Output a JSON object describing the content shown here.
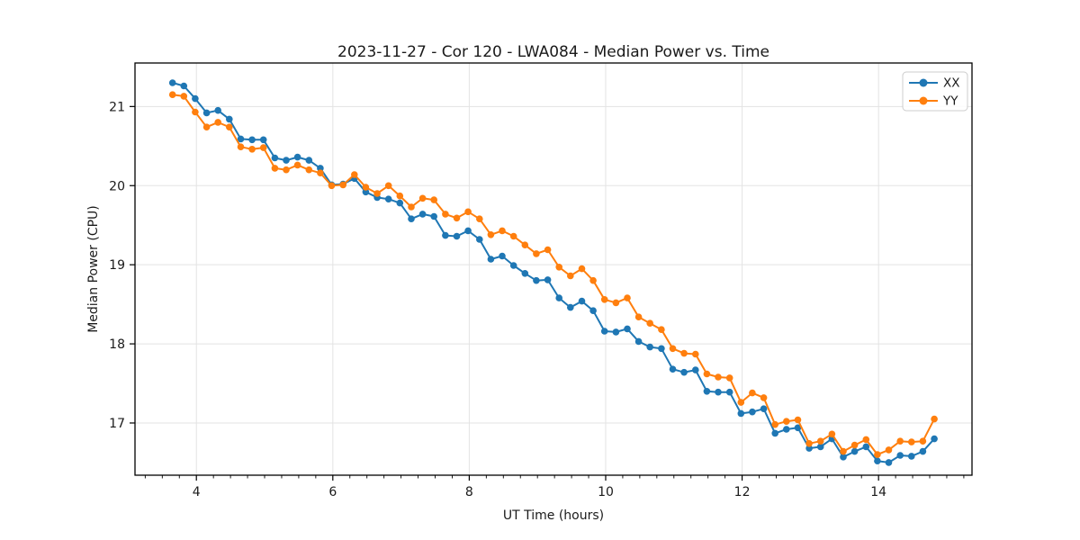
{
  "chart_data": {
    "type": "line",
    "title": "2023-11-27 - Cor 120 - LWA084 - Median Power vs. Time",
    "xlabel": "UT Time (hours)",
    "ylabel": "Median Power (CPU)",
    "xlim": [
      3.1,
      15.37
    ],
    "ylim": [
      16.34,
      21.55
    ],
    "xticks": [
      4,
      6,
      8,
      10,
      12,
      14
    ],
    "yticks": [
      17,
      18,
      19,
      20,
      21
    ],
    "x_minor_step": 0.25,
    "grid": true,
    "grid_color": "#e3e3e3",
    "legend_position": "upper right",
    "x": [
      3.65,
      3.817,
      3.983,
      4.15,
      4.317,
      4.483,
      4.65,
      4.817,
      4.983,
      5.15,
      5.317,
      5.483,
      5.65,
      5.817,
      5.983,
      6.15,
      6.317,
      6.483,
      6.65,
      6.817,
      6.983,
      7.15,
      7.317,
      7.483,
      7.65,
      7.817,
      7.983,
      8.15,
      8.317,
      8.483,
      8.65,
      8.817,
      8.983,
      9.15,
      9.317,
      9.483,
      9.65,
      9.817,
      9.983,
      10.15,
      10.317,
      10.483,
      10.65,
      10.817,
      10.983,
      11.15,
      11.317,
      11.483,
      11.65,
      11.817,
      11.983,
      12.15,
      12.317,
      12.483,
      12.65,
      12.817,
      12.983,
      13.15,
      13.317,
      13.483,
      13.65,
      13.817,
      13.983,
      14.15,
      14.317,
      14.483,
      14.65,
      14.817
    ],
    "series": [
      {
        "name": "XX",
        "color": "#1f77b4",
        "values": [
          21.3,
          21.26,
          21.1,
          20.92,
          20.95,
          20.84,
          20.59,
          20.58,
          20.58,
          20.35,
          20.32,
          20.36,
          20.32,
          20.22,
          20.01,
          20.02,
          20.09,
          19.92,
          19.85,
          19.83,
          19.78,
          19.58,
          19.64,
          19.61,
          19.37,
          19.36,
          19.43,
          19.32,
          19.07,
          19.11,
          18.99,
          18.89,
          18.8,
          18.81,
          18.58,
          18.46,
          18.54,
          18.42,
          18.16,
          18.15,
          18.19,
          18.03,
          17.96,
          17.94,
          17.68,
          17.64,
          17.67,
          17.4,
          17.39,
          17.39,
          17.12,
          17.14,
          17.18,
          16.87,
          16.92,
          16.94,
          16.68,
          16.7,
          16.8,
          16.57,
          16.64,
          16.7,
          16.52,
          16.5,
          16.59,
          16.58,
          16.64,
          16.8
        ]
      },
      {
        "name": "YY",
        "color": "#ff7f0e",
        "values": [
          21.15,
          21.13,
          20.93,
          20.74,
          20.8,
          20.74,
          20.49,
          20.46,
          20.48,
          20.22,
          20.2,
          20.26,
          20.2,
          20.16,
          20.0,
          20.01,
          20.14,
          19.98,
          19.9,
          20.0,
          19.87,
          19.73,
          19.84,
          19.82,
          19.64,
          19.59,
          19.67,
          19.58,
          19.38,
          19.43,
          19.36,
          19.25,
          19.14,
          19.19,
          18.97,
          18.86,
          18.95,
          18.8,
          18.56,
          18.52,
          18.58,
          18.34,
          18.26,
          18.18,
          17.94,
          17.88,
          17.87,
          17.62,
          17.58,
          17.57,
          17.26,
          17.38,
          17.32,
          16.98,
          17.02,
          17.04,
          16.74,
          16.77,
          16.86,
          16.64,
          16.72,
          16.79,
          16.6,
          16.66,
          16.77,
          16.76,
          16.77,
          17.05
        ]
      }
    ]
  }
}
